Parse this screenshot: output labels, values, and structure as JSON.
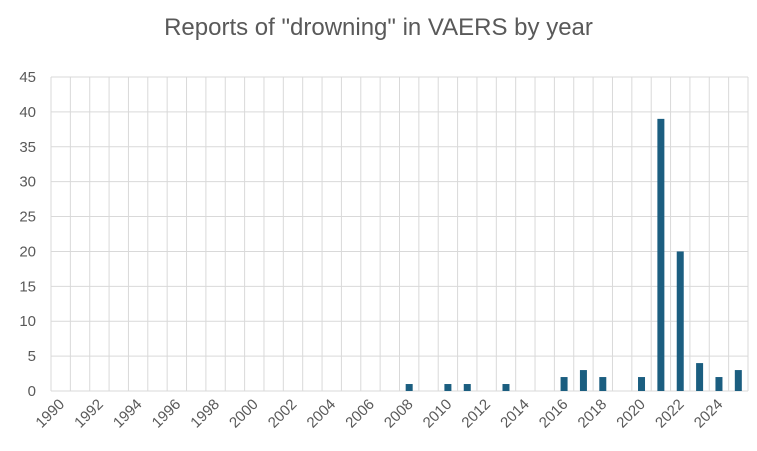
{
  "chart_data": {
    "type": "bar",
    "title": "Reports of \"drowning\" in VAERS by year",
    "xlabel": "",
    "ylabel": "",
    "ylim": [
      0,
      45
    ],
    "yticks": [
      0,
      5,
      10,
      15,
      20,
      25,
      30,
      35,
      40,
      45
    ],
    "grid": true,
    "legend": "none",
    "bar_color": "#1b5e80",
    "grid_color": "#d9d9d9",
    "categories": [
      "1990",
      "1991",
      "1992",
      "1993",
      "1994",
      "1995",
      "1996",
      "1997",
      "1998",
      "1999",
      "2000",
      "2001",
      "2002",
      "2003",
      "2004",
      "2005",
      "2006",
      "2007",
      "2008",
      "2009",
      "2010",
      "2011",
      "2012",
      "2013",
      "2014",
      "2015",
      "2016",
      "2017",
      "2018",
      "2019",
      "2020",
      "2021",
      "2022",
      "2023",
      "2024",
      "2025"
    ],
    "x_tick_labels": [
      "1990",
      "1992",
      "1994",
      "1996",
      "1998",
      "2000",
      "2002",
      "2004",
      "2006",
      "2008",
      "2010",
      "2012",
      "2014",
      "2016",
      "2018",
      "2020",
      "2022",
      "2024"
    ],
    "values": [
      0,
      0,
      0,
      0,
      0,
      0,
      0,
      0,
      0,
      0,
      0,
      0,
      0,
      0,
      0,
      0,
      0,
      0,
      1,
      0,
      1,
      1,
      0,
      1,
      0,
      0,
      2,
      3,
      2,
      0,
      2,
      39,
      20,
      4,
      2,
      3
    ]
  }
}
